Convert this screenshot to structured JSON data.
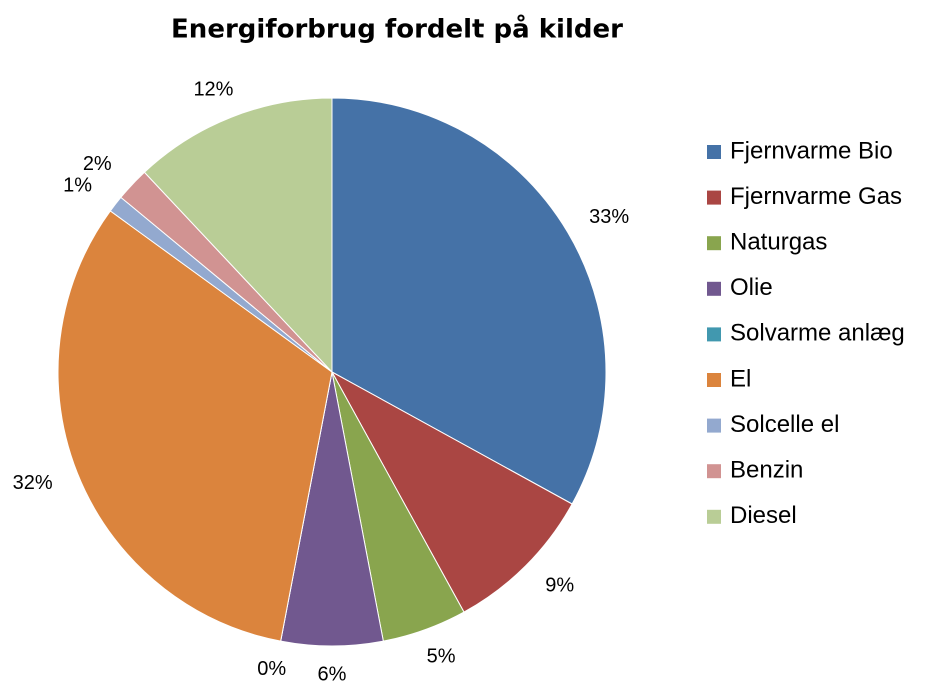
{
  "chart_data": {
    "type": "pie",
    "title": "Energiforbrug fordelt på kilder",
    "categories": [
      "Fjernvarme Bio",
      "Fjernvarme Gas",
      "Naturgas",
      "Olie",
      "Solvarme anlæg",
      "El",
      "Solcelle el",
      "Benzin",
      "Diesel"
    ],
    "values": [
      33,
      9,
      5,
      6,
      0,
      32,
      1,
      2,
      12
    ],
    "value_labels": [
      "33%",
      "9%",
      "5%",
      "6%",
      "0%",
      "32%",
      "1%",
      "2%",
      "12%"
    ],
    "colors": [
      "#4572a7",
      "#aa4643",
      "#89a54e",
      "#71588f",
      "#4198af",
      "#db843d",
      "#93a9cf",
      "#d19392",
      "#b9cd96"
    ],
    "legend": "right"
  }
}
